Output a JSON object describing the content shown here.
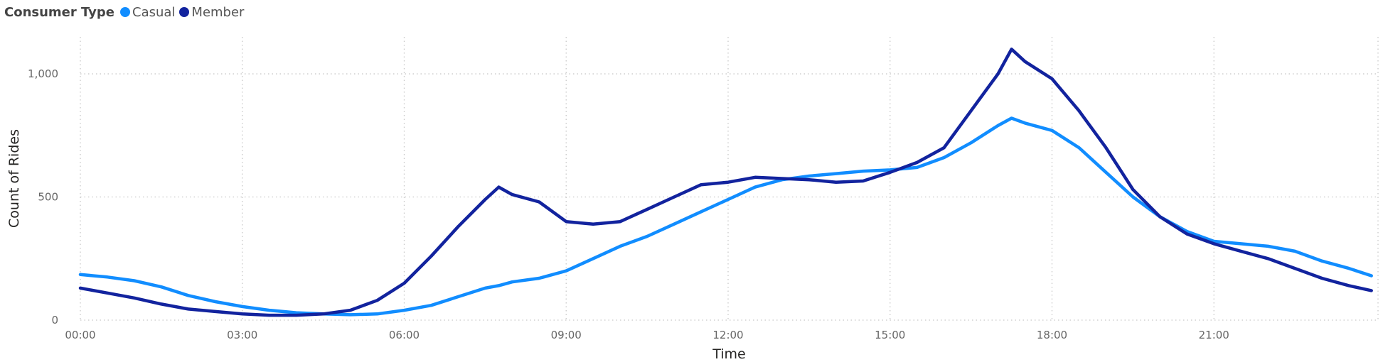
{
  "legend": {
    "title": "Consumer Type",
    "items": [
      {
        "label": "Casual",
        "color": "#118DFF"
      },
      {
        "label": "Member",
        "color": "#12239E"
      }
    ]
  },
  "chart_data": {
    "type": "line",
    "xlabel": "Time",
    "ylabel": "Count of Rides",
    "x_ticks": [
      "00:00",
      "03:00",
      "06:00",
      "09:00",
      "12:00",
      "15:00",
      "18:00",
      "21:00"
    ],
    "y_ticks": [
      "0",
      "500",
      "1,000"
    ],
    "ylim": [
      0,
      1150
    ],
    "grid": "dotted",
    "legend_position": "top-left",
    "x": [
      "00:00",
      "00:30",
      "01:00",
      "01:30",
      "02:00",
      "02:30",
      "03:00",
      "03:30",
      "04:00",
      "04:30",
      "05:00",
      "05:30",
      "06:00",
      "06:30",
      "07:00",
      "07:30",
      "07:45",
      "08:00",
      "08:30",
      "09:00",
      "09:30",
      "10:00",
      "10:30",
      "11:00",
      "11:30",
      "12:00",
      "12:30",
      "13:00",
      "13:30",
      "14:00",
      "14:30",
      "15:00",
      "15:30",
      "16:00",
      "16:30",
      "17:00",
      "17:15",
      "17:30",
      "18:00",
      "18:30",
      "19:00",
      "19:30",
      "20:00",
      "20:30",
      "21:00",
      "21:30",
      "22:00",
      "22:30",
      "23:00",
      "23:30",
      "23:55"
    ],
    "series": [
      {
        "name": "Casual",
        "color": "#118DFF",
        "values": [
          185,
          175,
          160,
          135,
          100,
          75,
          55,
          40,
          30,
          25,
          22,
          25,
          40,
          60,
          95,
          130,
          140,
          155,
          170,
          200,
          250,
          300,
          340,
          390,
          440,
          490,
          540,
          570,
          585,
          595,
          605,
          610,
          620,
          660,
          720,
          790,
          820,
          800,
          770,
          700,
          600,
          500,
          420,
          360,
          320,
          310,
          300,
          280,
          240,
          210,
          180
        ]
      },
      {
        "name": "Member",
        "color": "#12239E",
        "values": [
          130,
          110,
          90,
          65,
          45,
          35,
          25,
          20,
          20,
          25,
          40,
          80,
          150,
          260,
          380,
          490,
          540,
          510,
          480,
          400,
          390,
          400,
          450,
          500,
          550,
          560,
          580,
          575,
          570,
          560,
          565,
          600,
          640,
          700,
          850,
          1000,
          1100,
          1050,
          980,
          850,
          700,
          530,
          420,
          350,
          310,
          280,
          250,
          210,
          170,
          140,
          120
        ]
      }
    ]
  }
}
